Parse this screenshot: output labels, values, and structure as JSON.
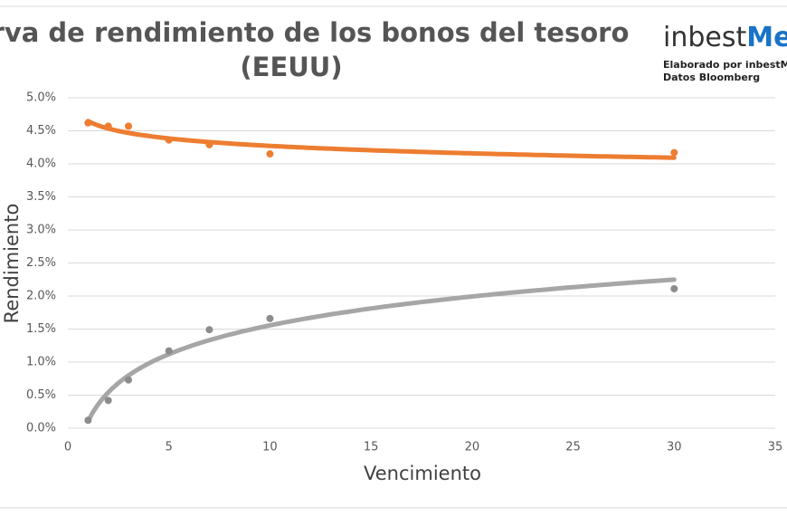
{
  "chart_data": {
    "type": "scatter",
    "title": [
      "Curva de rendimiento de los bonos del tesoro",
      "(EEUU)"
    ],
    "x_label": "Vencimiento",
    "y_label": "Rendimiento",
    "x": [
      1,
      2,
      3,
      5,
      7,
      10,
      30
    ],
    "series": [
      {
        "color": "#ed7d31",
        "values": [
          4.62,
          4.57,
          4.57,
          4.36,
          4.29,
          4.15,
          4.17
        ],
        "trendline": "logarithmic"
      },
      {
        "color": "#8c8c8c",
        "trend_color": "#a6a6a6",
        "values": [
          0.12,
          0.42,
          0.73,
          1.17,
          1.49,
          1.66,
          2.11
        ],
        "trendline": "logarithmic"
      }
    ],
    "xlim": [
      0,
      35
    ],
    "xticks": [
      0,
      5,
      10,
      15,
      20,
      25,
      30,
      35
    ],
    "ylim": [
      0,
      5
    ],
    "yticks": [
      {
        "value": 0,
        "label": "0.0%"
      },
      {
        "value": 0.5,
        "label": "0.5%"
      },
      {
        "value": 1,
        "label": "1.0%"
      },
      {
        "value": 1.5,
        "label": "1.5%"
      },
      {
        "value": 2,
        "label": "2.0%"
      },
      {
        "value": 2.5,
        "label": "2.5%"
      },
      {
        "value": 3,
        "label": "3.0%"
      },
      {
        "value": 3.5,
        "label": "3.5%"
      },
      {
        "value": 4,
        "label": "4.0%"
      },
      {
        "value": 4.5,
        "label": "4.5%"
      },
      {
        "value": 5,
        "label": "5.0%"
      }
    ],
    "grid": true
  },
  "logo": {
    "text": "inbest",
    "accent": "Me"
  },
  "notes": [
    "Elaborado por inbestMe",
    "Datos Bloomberg"
  ]
}
